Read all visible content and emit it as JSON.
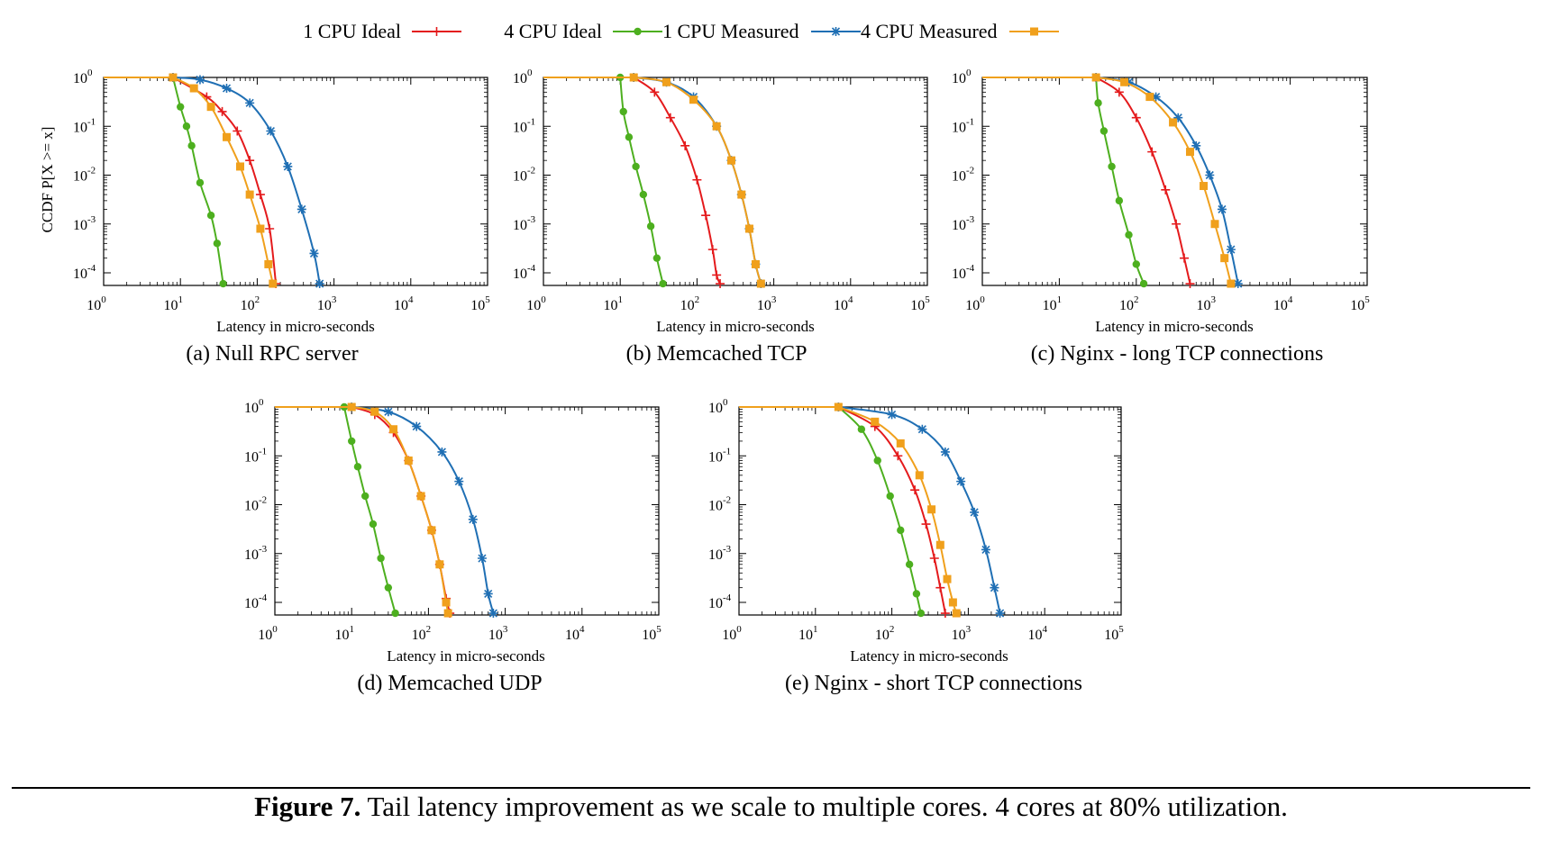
{
  "legend": [
    {
      "label": "1 CPU Ideal",
      "color": "#e41a1c",
      "marker": "plus"
    },
    {
      "label": "4 CPU Ideal",
      "color": "#4daf1f",
      "marker": "circle"
    },
    {
      "label": "1 CPU Measured",
      "color": "#1f6fb4",
      "marker": "star"
    },
    {
      "label": "4 CPU Measured",
      "color": "#f0a01c",
      "marker": "square"
    }
  ],
  "caption": {
    "label": "Figure 7.",
    "text": "Tail latency improvement as we scale to multiple cores. 4 cores at 80% utilization."
  },
  "chart_data": [
    {
      "type": "line",
      "subtitle": "(a) Null RPC server",
      "xlabel": "Latency in micro-seconds",
      "ylabel": "CCDF   P[X >= x]",
      "xscale": "log",
      "yscale": "log",
      "xlim": [
        1,
        100000
      ],
      "ylim": [
        6e-05,
        1
      ],
      "x_ticks": [
        "10^0",
        "10^1",
        "10^2",
        "10^3",
        "10^4",
        "10^5"
      ],
      "y_ticks": [
        "10^0",
        "10^-1",
        "10^-2",
        "10^-3",
        "10^-4"
      ],
      "series": [
        {
          "name": "1 CPU Ideal",
          "x": [
            8,
            22,
            35,
            55,
            80,
            110,
            145,
            175
          ],
          "y": [
            1,
            0.4,
            0.2,
            0.08,
            0.02,
            0.004,
            0.0008,
            6e-05
          ]
        },
        {
          "name": "4 CPU Ideal",
          "x": [
            8,
            10,
            12,
            14,
            18,
            25,
            30,
            36
          ],
          "y": [
            1,
            0.25,
            0.1,
            0.04,
            0.007,
            0.0015,
            0.0004,
            6e-05
          ]
        },
        {
          "name": "1 CPU Measured",
          "x": [
            8,
            18,
            40,
            80,
            150,
            250,
            380,
            550,
            650
          ],
          "y": [
            1,
            0.9,
            0.6,
            0.3,
            0.08,
            0.015,
            0.002,
            0.00025,
            6e-05
          ]
        },
        {
          "name": "4 CPU Measured",
          "x": [
            8,
            15,
            25,
            40,
            60,
            80,
            110,
            140,
            160
          ],
          "y": [
            1,
            0.6,
            0.25,
            0.06,
            0.015,
            0.004,
            0.0008,
            0.00015,
            6e-05
          ]
        }
      ]
    },
    {
      "type": "line",
      "subtitle": "(b) Memcached TCP",
      "xlabel": "Latency in micro-seconds",
      "xscale": "log",
      "yscale": "log",
      "xlim": [
        1,
        100000
      ],
      "ylim": [
        6e-05,
        1
      ],
      "x_ticks": [
        "10^0",
        "10^1",
        "10^2",
        "10^3",
        "10^4",
        "10^5"
      ],
      "y_ticks": [
        "10^0",
        "10^-1",
        "10^-2",
        "10^-3",
        "10^-4"
      ],
      "series": [
        {
          "name": "1 CPU Ideal",
          "x": [
            15,
            28,
            45,
            70,
            100,
            130,
            160,
            180,
            200
          ],
          "y": [
            1,
            0.5,
            0.15,
            0.04,
            0.008,
            0.0015,
            0.0003,
            9e-05,
            6e-05
          ]
        },
        {
          "name": "4 CPU Ideal",
          "x": [
            10,
            11,
            13,
            16,
            20,
            25,
            30,
            36
          ],
          "y": [
            1,
            0.2,
            0.06,
            0.015,
            0.004,
            0.0009,
            0.0002,
            6e-05
          ]
        },
        {
          "name": "1 CPU Measured",
          "x": [
            15,
            40,
            90,
            180,
            280,
            380,
            480,
            580,
            680
          ],
          "y": [
            1,
            0.8,
            0.4,
            0.1,
            0.02,
            0.004,
            0.0008,
            0.00015,
            6e-05
          ]
        },
        {
          "name": "4 CPU Measured",
          "x": [
            15,
            40,
            90,
            180,
            280,
            380,
            480,
            580,
            680
          ],
          "y": [
            1,
            0.8,
            0.35,
            0.1,
            0.02,
            0.004,
            0.0008,
            0.00015,
            6e-05
          ]
        }
      ]
    },
    {
      "type": "line",
      "subtitle": "(c) Nginx - long TCP connections",
      "xlabel": "Latency in micro-seconds",
      "xscale": "log",
      "yscale": "log",
      "xlim": [
        1,
        100000
      ],
      "ylim": [
        6e-05,
        1
      ],
      "x_ticks": [
        "10^0",
        "10^1",
        "10^2",
        "10^3",
        "10^4",
        "10^5"
      ],
      "y_ticks": [
        "10^0",
        "10^-1",
        "10^-2",
        "10^-3",
        "10^-4"
      ],
      "series": [
        {
          "name": "1 CPU Ideal",
          "x": [
            30,
            60,
            100,
            160,
            240,
            330,
            420,
            500
          ],
          "y": [
            1,
            0.5,
            0.15,
            0.03,
            0.005,
            0.001,
            0.0002,
            6e-05
          ]
        },
        {
          "name": "4 CPU Ideal",
          "x": [
            30,
            32,
            38,
            48,
            60,
            80,
            100,
            125
          ],
          "y": [
            1,
            0.3,
            0.08,
            0.015,
            0.003,
            0.0006,
            0.00015,
            6e-05
          ]
        },
        {
          "name": "1 CPU Measured",
          "x": [
            30,
            80,
            180,
            350,
            600,
            900,
            1300,
            1700,
            2100
          ],
          "y": [
            1,
            0.8,
            0.4,
            0.15,
            0.04,
            0.01,
            0.002,
            0.0003,
            6e-05
          ]
        },
        {
          "name": "4 CPU Measured",
          "x": [
            30,
            70,
            150,
            300,
            500,
            750,
            1050,
            1400,
            1700
          ],
          "y": [
            1,
            0.8,
            0.4,
            0.12,
            0.03,
            0.006,
            0.001,
            0.0002,
            6e-05
          ]
        }
      ]
    },
    {
      "type": "line",
      "subtitle": "(d) Memcached UDP",
      "xlabel": "Latency in micro-seconds",
      "xscale": "log",
      "yscale": "log",
      "xlim": [
        1,
        100000
      ],
      "ylim": [
        6e-05,
        1
      ],
      "x_ticks": [
        "10^0",
        "10^1",
        "10^2",
        "10^3",
        "10^4",
        "10^5"
      ],
      "y_ticks": [
        "10^0",
        "10^-1",
        "10^-2",
        "10^-3",
        "10^-4"
      ],
      "series": [
        {
          "name": "1 CPU Ideal",
          "x": [
            10,
            20,
            35,
            55,
            80,
            110,
            140,
            170,
            190
          ],
          "y": [
            1,
            0.7,
            0.3,
            0.08,
            0.015,
            0.003,
            0.0006,
            0.00012,
            6e-05
          ]
        },
        {
          "name": "4 CPU Ideal",
          "x": [
            8,
            10,
            12,
            15,
            19,
            24,
            30,
            37
          ],
          "y": [
            1,
            0.2,
            0.06,
            0.015,
            0.004,
            0.0008,
            0.0002,
            6e-05
          ]
        },
        {
          "name": "1 CPU Measured",
          "x": [
            10,
            30,
            70,
            150,
            250,
            380,
            500,
            600,
            700
          ],
          "y": [
            1,
            0.8,
            0.4,
            0.12,
            0.03,
            0.005,
            0.0008,
            0.00015,
            6e-05
          ]
        },
        {
          "name": "4 CPU Measured",
          "x": [
            10,
            20,
            35,
            55,
            80,
            110,
            140,
            170,
            180
          ],
          "y": [
            1,
            0.8,
            0.35,
            0.08,
            0.015,
            0.003,
            0.0006,
            0.0001,
            6e-05
          ]
        }
      ]
    },
    {
      "type": "line",
      "subtitle": "(e) Nginx - short TCP connections",
      "xlabel": "Latency in micro-seconds",
      "xscale": "log",
      "yscale": "log",
      "xlim": [
        1,
        100000
      ],
      "ylim": [
        6e-05,
        1
      ],
      "x_ticks": [
        "10^0",
        "10^1",
        "10^2",
        "10^3",
        "10^4",
        "10^5"
      ],
      "y_ticks": [
        "10^0",
        "10^-1",
        "10^-2",
        "10^-3",
        "10^-4"
      ],
      "series": [
        {
          "name": "1 CPU Ideal",
          "x": [
            20,
            60,
            120,
            200,
            280,
            360,
            430,
            500
          ],
          "y": [
            1,
            0.4,
            0.1,
            0.02,
            0.004,
            0.0008,
            0.0002,
            6e-05
          ]
        },
        {
          "name": "4 CPU Ideal",
          "x": [
            20,
            40,
            65,
            95,
            130,
            170,
            210,
            240
          ],
          "y": [
            1,
            0.35,
            0.08,
            0.015,
            0.003,
            0.0006,
            0.00015,
            6e-05
          ]
        },
        {
          "name": "1 CPU Measured",
          "x": [
            20,
            100,
            250,
            500,
            800,
            1200,
            1700,
            2200,
            2600
          ],
          "y": [
            1,
            0.7,
            0.35,
            0.12,
            0.03,
            0.007,
            0.0012,
            0.0002,
            6e-05
          ]
        },
        {
          "name": "4 CPU Measured",
          "x": [
            20,
            60,
            130,
            230,
            330,
            430,
            530,
            630,
            700
          ],
          "y": [
            1,
            0.5,
            0.18,
            0.04,
            0.008,
            0.0015,
            0.0003,
            0.0001,
            6e-05
          ]
        }
      ]
    }
  ]
}
